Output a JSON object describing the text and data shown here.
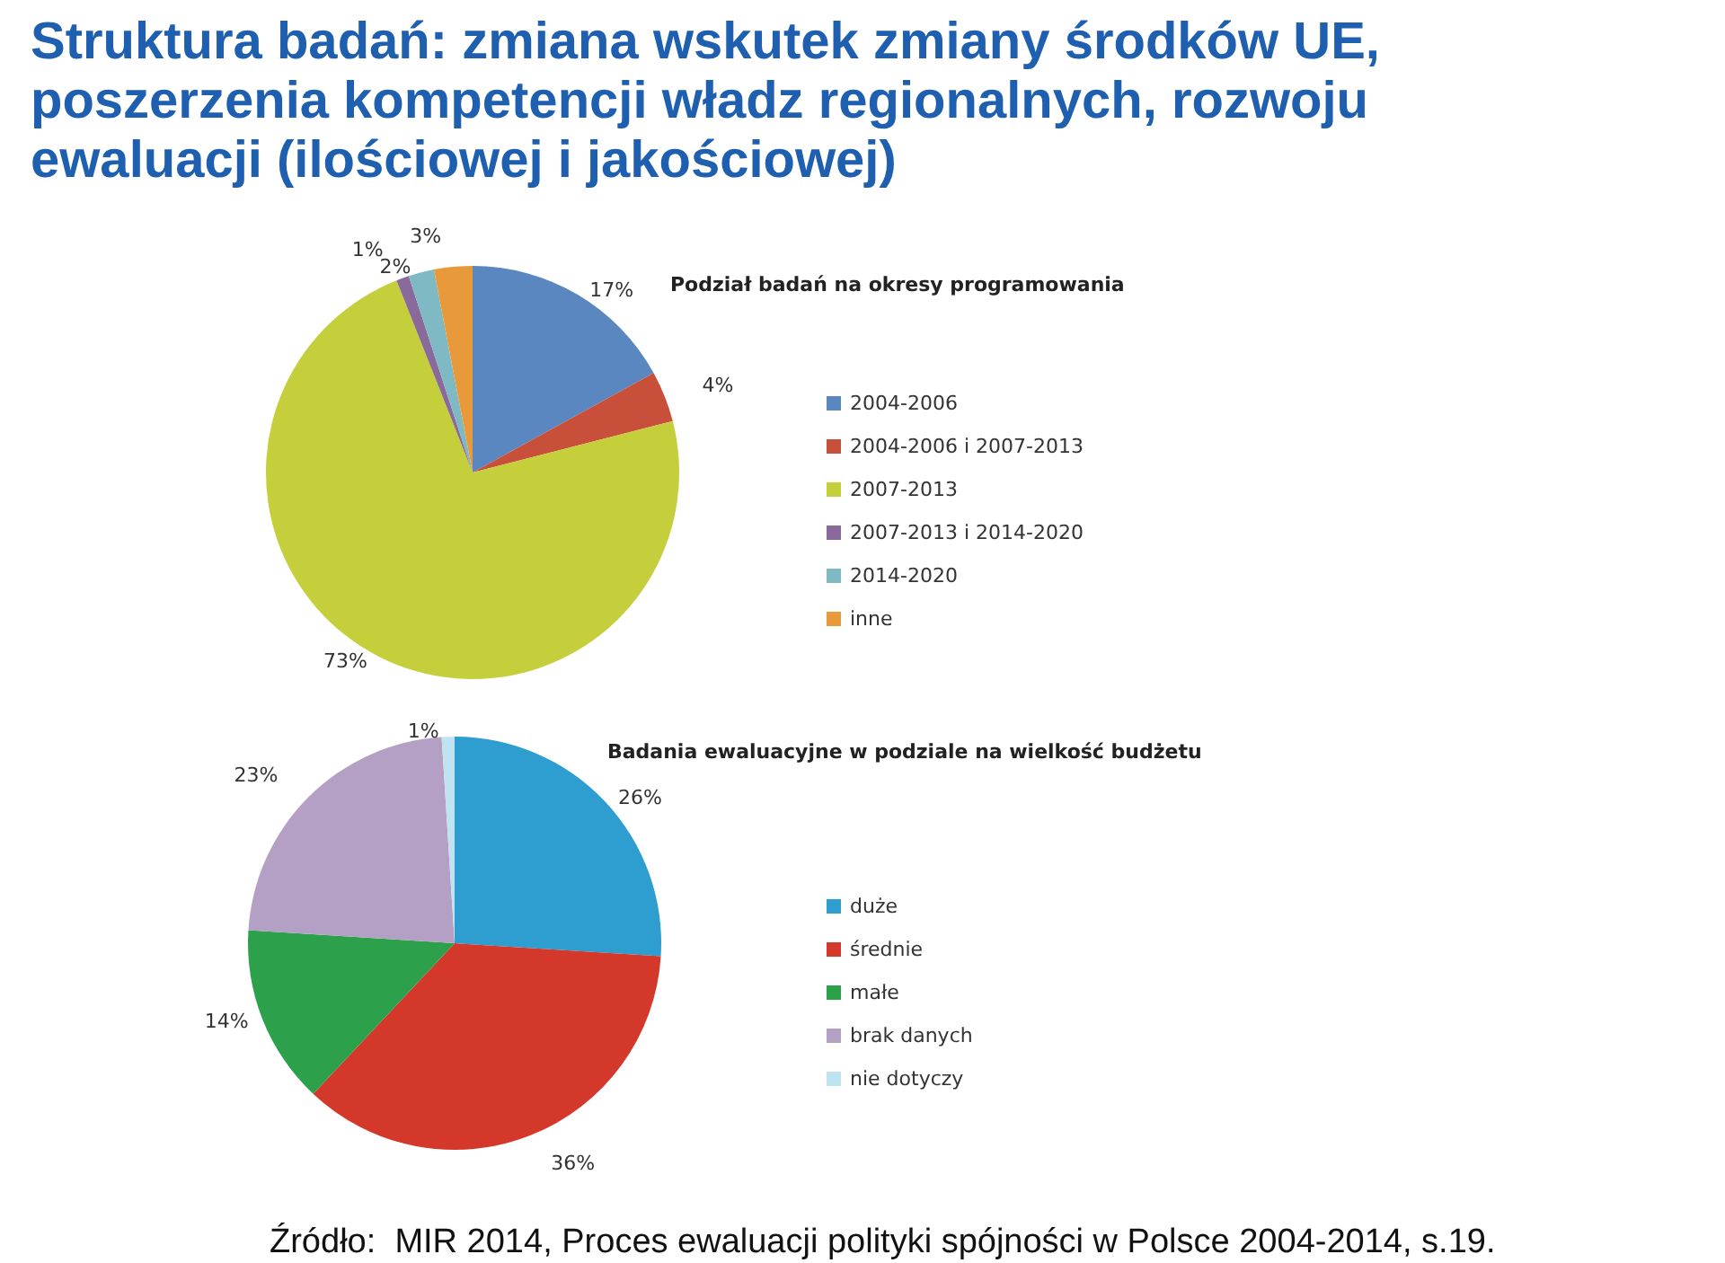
{
  "chart_data": [
    {
      "type": "pie",
      "title": "Struktura badań: zmiana wskutek zmiany środków UE, poszerzenia kompetencji władz regionalnych, rozwoju ewaluacji (ilościowej i jakościowej)",
      "subtitle": "Podział badań na okresy programowania",
      "categories": [
        "2004-2006",
        "2004-2006 i 2007-2013",
        "2007-2013",
        "2007-2013 i 2014-2020",
        "2014-2020",
        "inne"
      ],
      "values": [
        17,
        4,
        73,
        1,
        2,
        3
      ],
      "value_labels": [
        "17%",
        "4%",
        "73%",
        "1%",
        "2%",
        "3%"
      ],
      "colors": [
        "#5b87c1",
        "#c8503a",
        "#c5cf3c",
        "#8a6a9a",
        "#7fb9c4",
        "#e89a3a"
      ],
      "legend": "right"
    },
    {
      "type": "pie",
      "title": "Badania ewaluacyjne w podziale na wielkość budżetu",
      "categories": [
        "duże",
        "średnie",
        "małe",
        "brak danych",
        "nie dotyczy"
      ],
      "values": [
        26,
        36,
        14,
        23,
        1
      ],
      "value_labels": [
        "26%",
        "36%",
        "14%",
        "23%",
        "1%"
      ],
      "colors": [
        "#2e9dd0",
        "#d4382a",
        "#2ca04a",
        "#b3a0c4",
        "#bfe3f0"
      ],
      "legend": "right",
      "annotations": [
        "Źródło:  MIR 2014, Proces ewaluacji polityki spójności w Polsce 2004-2014, s.19."
      ]
    }
  ]
}
